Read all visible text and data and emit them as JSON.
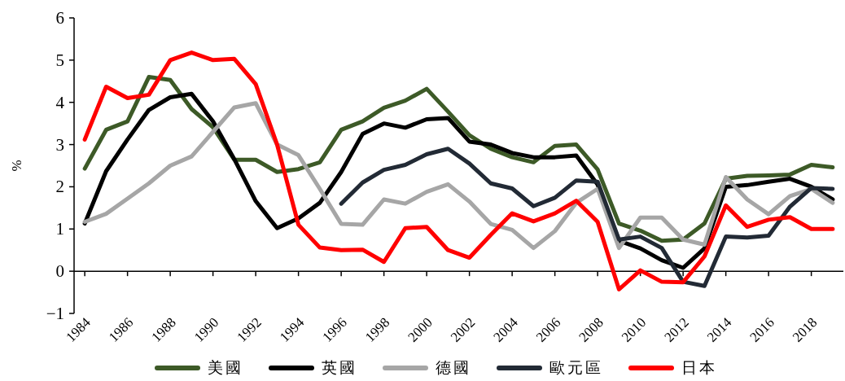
{
  "chart_data": {
    "type": "line",
    "ylabel": "%",
    "x": [
      1984,
      1985,
      1986,
      1987,
      1988,
      1989,
      1990,
      1991,
      1992,
      1993,
      1994,
      1995,
      1996,
      1997,
      1998,
      1999,
      2000,
      2001,
      2002,
      2003,
      2004,
      2005,
      2006,
      2007,
      2008,
      2009,
      2010,
      2011,
      2012,
      2013,
      2014,
      2015,
      2016,
      2017,
      2018,
      2019
    ],
    "series": [
      {
        "name": "美國",
        "color": "#3d5a27",
        "values": [
          2.43,
          3.35,
          3.55,
          4.6,
          4.53,
          3.84,
          3.41,
          2.64,
          2.64,
          2.35,
          2.42,
          2.58,
          3.35,
          3.55,
          3.87,
          4.04,
          4.32,
          3.78,
          3.22,
          2.9,
          2.7,
          2.58,
          2.97,
          3.0,
          2.41,
          1.13,
          0.96,
          0.72,
          0.75,
          1.13,
          2.19,
          2.26,
          2.27,
          2.29,
          2.52,
          2.46
        ]
      },
      {
        "name": "英國",
        "color": "#000000",
        "values": [
          1.13,
          2.37,
          3.12,
          3.82,
          4.12,
          4.2,
          3.55,
          2.65,
          1.66,
          1.02,
          1.25,
          1.62,
          2.35,
          3.25,
          3.5,
          3.4,
          3.6,
          3.63,
          3.07,
          3.0,
          2.8,
          2.7,
          2.7,
          2.74,
          2.05,
          0.72,
          0.54,
          0.26,
          0.08,
          0.54,
          2.0,
          2.04,
          2.12,
          2.19,
          2.0,
          1.7
        ]
      },
      {
        "name": "德國",
        "color": "#a6a6a6",
        "values": [
          1.17,
          1.36,
          1.72,
          2.08,
          2.5,
          2.72,
          3.3,
          3.88,
          3.98,
          3.0,
          2.75,
          1.95,
          1.12,
          1.1,
          1.7,
          1.6,
          1.88,
          2.06,
          1.65,
          1.12,
          0.98,
          0.55,
          0.95,
          1.62,
          1.95,
          0.55,
          1.27,
          1.27,
          0.75,
          0.63,
          2.23,
          1.7,
          1.35,
          1.78,
          1.95,
          1.62
        ]
      },
      {
        "name": "歐元區",
        "color": "#222a35",
        "values": [
          null,
          null,
          null,
          null,
          null,
          null,
          null,
          null,
          null,
          null,
          null,
          null,
          1.6,
          2.1,
          2.4,
          2.52,
          2.77,
          2.9,
          2.55,
          2.08,
          1.96,
          1.54,
          1.74,
          2.15,
          2.12,
          0.75,
          0.82,
          0.55,
          -0.25,
          -0.35,
          0.82,
          0.8,
          0.84,
          1.53,
          1.97,
          1.95
        ]
      },
      {
        "name": "日本",
        "color": "#ff0000",
        "values": [
          3.12,
          4.37,
          4.1,
          4.18,
          5.0,
          5.18,
          5.0,
          5.03,
          4.43,
          3.0,
          1.1,
          0.56,
          0.5,
          0.51,
          0.22,
          1.02,
          1.05,
          0.5,
          0.32,
          0.86,
          1.37,
          1.18,
          1.37,
          1.67,
          1.17,
          -0.43,
          0.02,
          -0.25,
          -0.26,
          0.35,
          1.56,
          1.05,
          1.22,
          1.28,
          1.0,
          1.0
        ]
      }
    ],
    "xlim": [
      1983.5,
      2019.5
    ],
    "ylim": [
      -1,
      6
    ],
    "xticks": [
      1984,
      1986,
      1988,
      1990,
      1992,
      1994,
      1996,
      1998,
      2000,
      2002,
      2004,
      2006,
      2008,
      2010,
      2012,
      2014,
      2016,
      2018
    ],
    "yticks": [
      -1,
      0,
      1,
      2,
      3,
      4,
      5,
      6
    ],
    "legend": "bottom",
    "marker": "none",
    "line_style": "solid"
  }
}
